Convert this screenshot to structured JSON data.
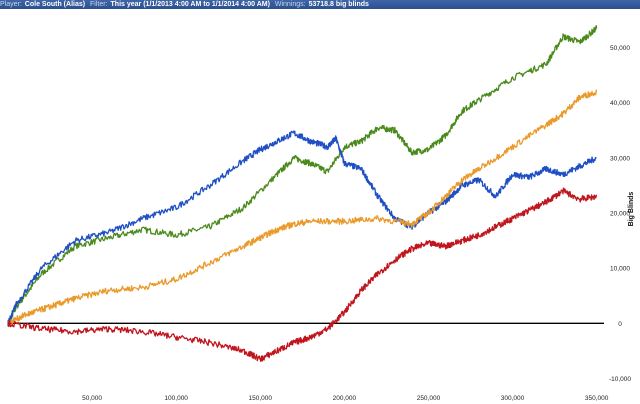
{
  "header": {
    "player_label": "Player:",
    "player_value": "Cole South (Alias)",
    "filter_label": "Filter:",
    "filter_value": "This year (1/1/2013 4:00 AM to 1/1/2014 4:00 AM)",
    "winnings_label": "Winnings:",
    "winnings_value": "53718.8 big blinds"
  },
  "chart_data": {
    "type": "line",
    "title": "",
    "xlabel": "",
    "ylabel": "Big Blinds",
    "xlim": [
      0,
      352000
    ],
    "ylim": [
      -13000,
      57000
    ],
    "x_ticks": [
      50000,
      100000,
      150000,
      200000,
      250000,
      300000,
      350000
    ],
    "x_tick_labels": [
      "50,000",
      "100,000",
      "150,000",
      "200,000",
      "250,000",
      "300,000",
      "350,000"
    ],
    "y_ticks": [
      -10000,
      0,
      10000,
      20000,
      30000,
      40000,
      50000
    ],
    "y_tick_labels": [
      "-10,000",
      "0",
      "10,000",
      "20,000",
      "30,000",
      "40,000",
      "50,000"
    ],
    "y_axis_side": "right",
    "zero_line": true,
    "grid": false,
    "legend": "none",
    "series": [
      {
        "color": "#4a8a1c",
        "x": [
          0,
          5000,
          20000,
          40000,
          60000,
          80000,
          100000,
          120000,
          140000,
          160000,
          170000,
          180000,
          190000,
          200000,
          210000,
          220000,
          230000,
          240000,
          250000,
          260000,
          270000,
          280000,
          300000,
          320000,
          330000,
          340000,
          350000
        ],
        "y": [
          0,
          3000,
          9000,
          14000,
          15500,
          17000,
          16000,
          17500,
          21000,
          27000,
          30000,
          29000,
          27500,
          32000,
          33000,
          35500,
          35000,
          31000,
          31500,
          34000,
          38500,
          40500,
          44500,
          47000,
          52000,
          51000,
          53500
        ]
      },
      {
        "color": "#1f4fc4",
        "x": [
          0,
          5000,
          20000,
          40000,
          60000,
          80000,
          100000,
          120000,
          140000,
          150000,
          160000,
          170000,
          180000,
          190000,
          195000,
          200000,
          210000,
          220000,
          230000,
          240000,
          250000,
          260000,
          270000,
          280000,
          290000,
          300000,
          310000,
          320000,
          330000,
          340000,
          350000
        ],
        "y": [
          0,
          3500,
          10000,
          15000,
          16500,
          19000,
          21000,
          25000,
          29500,
          31500,
          33000,
          34500,
          33000,
          32000,
          33500,
          29000,
          28000,
          23000,
          19000,
          17500,
          20000,
          22000,
          25000,
          26000,
          23000,
          27000,
          26500,
          28000,
          27000,
          28500,
          30000
        ]
      },
      {
        "color": "#e99a2a",
        "x": [
          0,
          10000,
          20000,
          30000,
          40000,
          60000,
          80000,
          100000,
          120000,
          140000,
          150000,
          160000,
          170000,
          180000,
          200000,
          220000,
          240000,
          250000,
          260000,
          270000,
          280000,
          300000,
          320000,
          330000,
          340000,
          350000
        ],
        "y": [
          0,
          1500,
          2500,
          3500,
          4500,
          6000,
          6500,
          8000,
          11000,
          14000,
          15500,
          17000,
          18000,
          18500,
          18500,
          19000,
          18000,
          20000,
          23000,
          26000,
          28000,
          32000,
          36000,
          38000,
          41000,
          42000
        ]
      },
      {
        "color": "#c0151c",
        "x": [
          0,
          20000,
          40000,
          60000,
          80000,
          100000,
          120000,
          140000,
          150000,
          160000,
          170000,
          180000,
          190000,
          200000,
          210000,
          220000,
          230000,
          240000,
          250000,
          260000,
          270000,
          280000,
          290000,
          300000,
          310000,
          320000,
          330000,
          340000,
          350000
        ],
        "y": [
          0,
          -1000,
          -1500,
          -1000,
          -1500,
          -2500,
          -3500,
          -5000,
          -6500,
          -5000,
          -3500,
          -2500,
          -1000,
          2000,
          6000,
          9000,
          11500,
          13500,
          14500,
          14000,
          15000,
          16000,
          17500,
          19000,
          20500,
          22000,
          24000,
          22500,
          23000
        ]
      }
    ]
  }
}
